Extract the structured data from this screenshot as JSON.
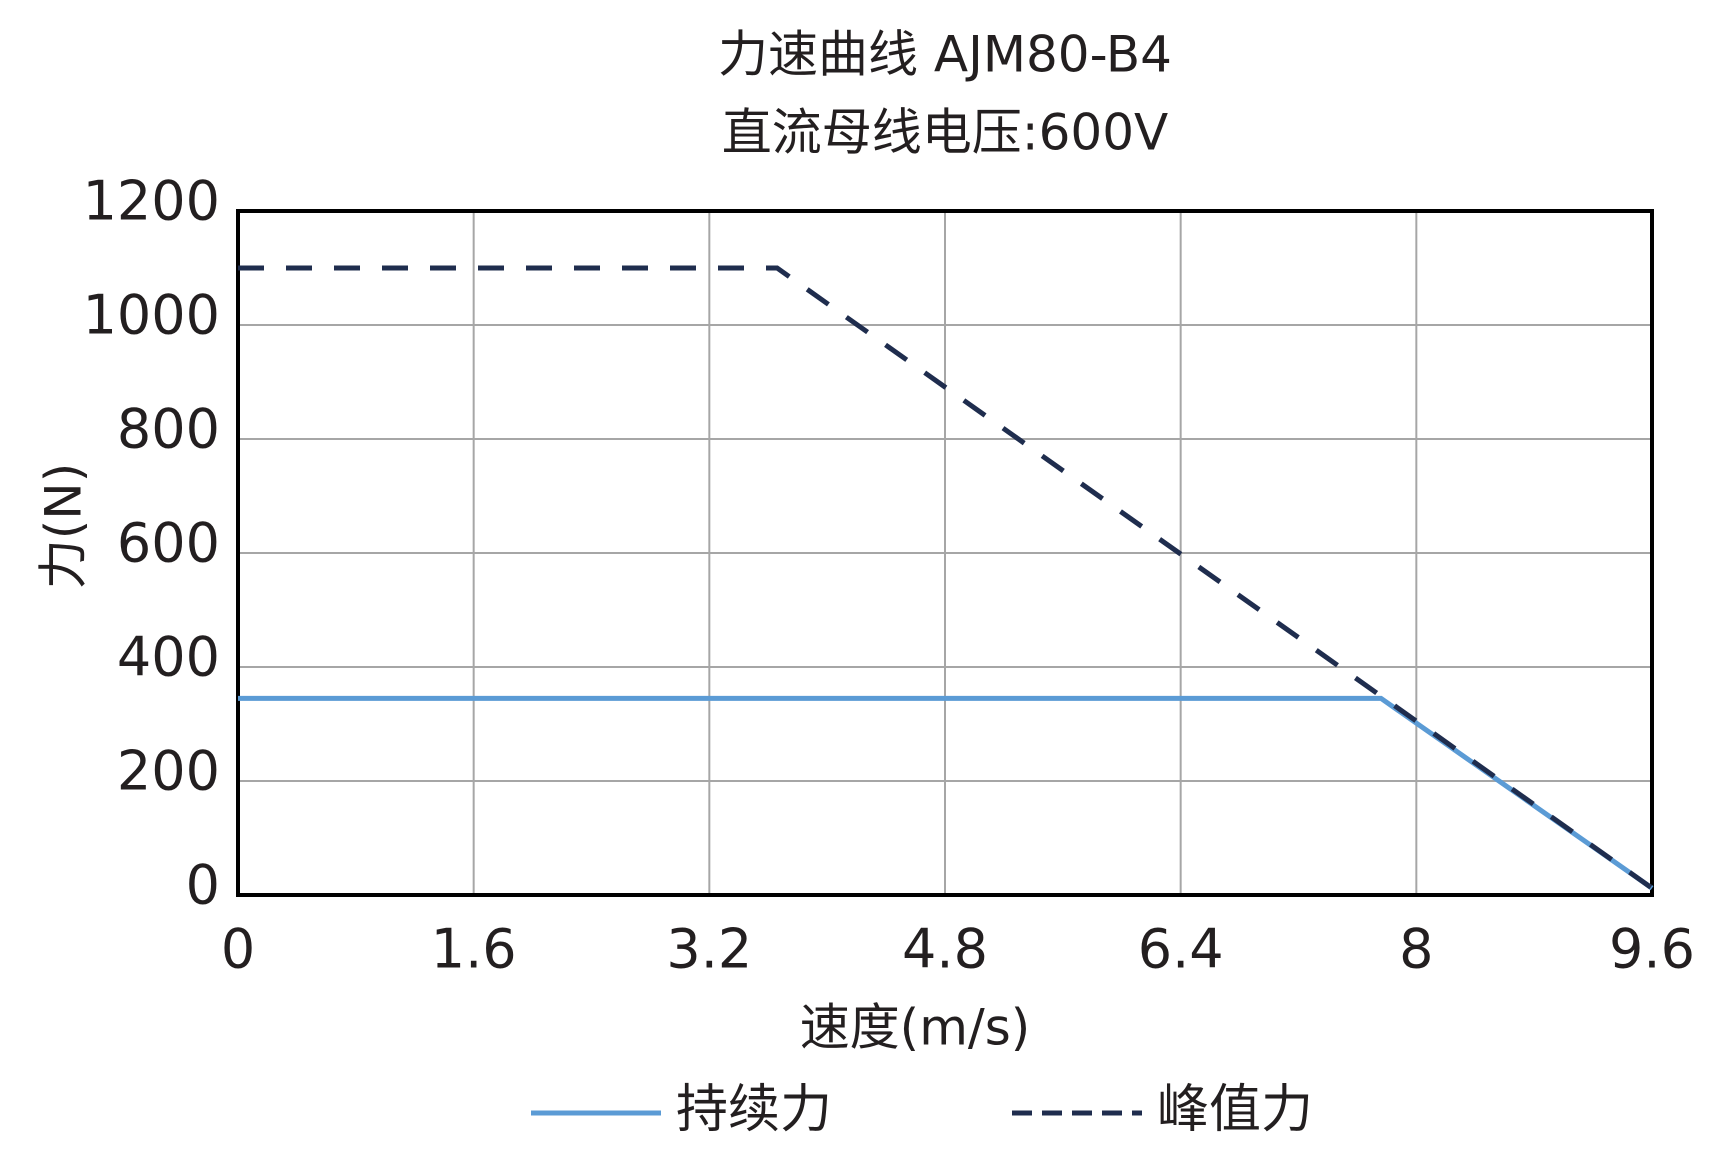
{
  "chart_data": {
    "type": "line",
    "title": "力速曲线 AJM80-B4",
    "subtitle": "直流母线电压:600V",
    "x_label": "速度(m/s)",
    "y_label": "力(N)",
    "series": [
      {
        "name": "持续力",
        "color": "#5b9bd5",
        "dash": false,
        "x": [
          0,
          7.76,
          9.6
        ],
        "values": [
          345,
          345,
          12
        ]
      },
      {
        "name": "峰值力",
        "color": "#1f2d4e",
        "dash": true,
        "x": [
          0,
          3.66,
          9.6
        ],
        "values": [
          1100,
          1100,
          12
        ]
      }
    ],
    "xlim": [
      0,
      9.6
    ],
    "xticks": [
      0,
      1.6,
      3.2,
      4.8,
      6.4,
      8,
      9.6
    ],
    "ylim": [
      0,
      1200
    ],
    "yticks": [
      0,
      200,
      400,
      600,
      800,
      1000,
      1200
    ],
    "grid": true,
    "legend": "bottom"
  }
}
